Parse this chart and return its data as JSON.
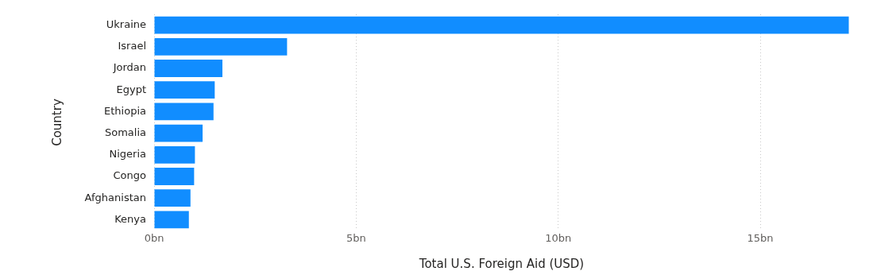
{
  "chart_data": {
    "type": "bar",
    "orientation": "horizontal",
    "xlabel": "Total U.S. Foreign Aid (USD)",
    "ylabel": "Country",
    "categories": [
      "Ukraine",
      "Israel",
      "Jordan",
      "Egypt",
      "Ethiopia",
      "Somalia",
      "Nigeria",
      "Congo",
      "Afghanistan",
      "Kenya"
    ],
    "values": [
      17.19,
      3.29,
      1.69,
      1.5,
      1.47,
      1.2,
      1.01,
      0.99,
      0.9,
      0.86
    ],
    "color": "#118dff",
    "xlim": [
      0,
      17.2
    ],
    "xticks": [
      {
        "value": 0,
        "label": "0bn"
      },
      {
        "value": 5,
        "label": "5bn"
      },
      {
        "value": 10,
        "label": "10bn"
      },
      {
        "value": 15,
        "label": "15bn"
      }
    ],
    "grid": "x",
    "legend": false
  }
}
